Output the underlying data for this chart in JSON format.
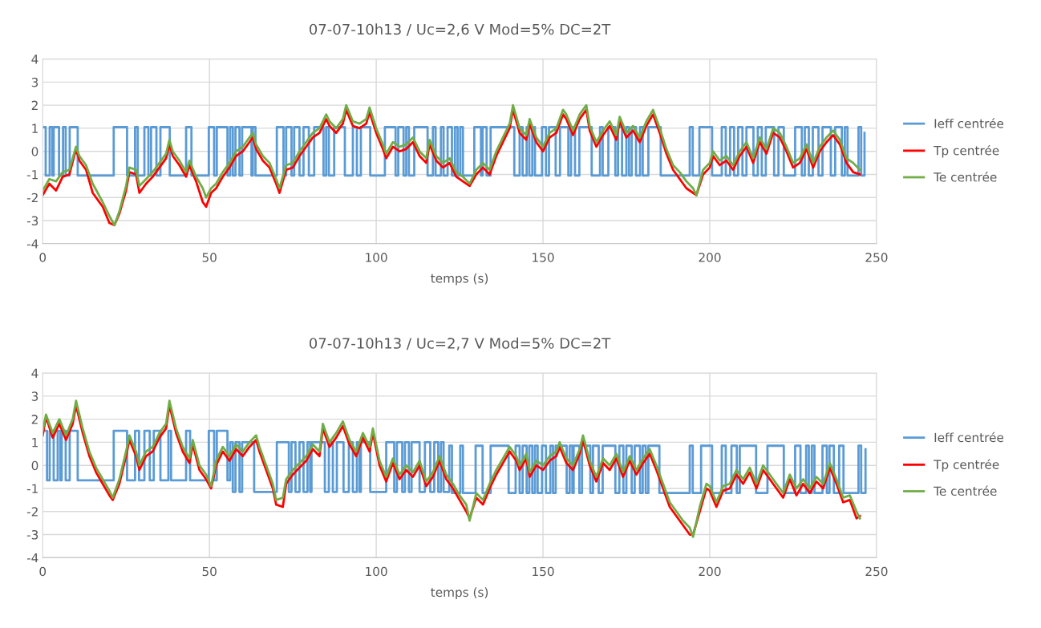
{
  "chart_data": [
    {
      "type": "line",
      "title": "07-07-10h13 / Uc=2,6 V Mod=5% DC=2T",
      "xlabel": "temps (s)",
      "xlim": [
        0,
        250
      ],
      "xticks": [
        0,
        50,
        100,
        150,
        200,
        250
      ],
      "ylim": [
        -4,
        4
      ],
      "yticks": [
        -4,
        -3,
        -2,
        -1,
        0,
        1,
        2,
        3,
        4
      ],
      "grid": true,
      "legend": "right",
      "series": [
        {
          "name": "Ieff centrée",
          "type": "step",
          "color": "#5b9bd5",
          "x": [
            0,
            0.9,
            2.1,
            2.9,
            3.3,
            4.9,
            6.1,
            6.9,
            8.1,
            10.5,
            21.3,
            25.3,
            27.7,
            28.5,
            30.5,
            31.7,
            32.5,
            34.1,
            35.3,
            38.1,
            43.0,
            44.6,
            49.8,
            51.4,
            52.2,
            55.4,
            56.2,
            57.0,
            57.8,
            59.0,
            59.8,
            62.6,
            63.0,
            63.8,
            70.2,
            72.2,
            73.0,
            74.6,
            75.4,
            77.0,
            78.2,
            79.8,
            81.4,
            84.2,
            85.0,
            85.8,
            87.4,
            90.6,
            93.0,
            94.2,
            95.4,
            98.2,
            102.6,
            105.8,
            106.6,
            108.2,
            109.0,
            109.8,
            111.4,
            115.4,
            117.0,
            117.8,
            119.4,
            120.2,
            121.4,
            122.7,
            123.6,
            124.4,
            125.2,
            126.0,
            129.4,
            131.4,
            131.9,
            133.1,
            134.3,
            141.4,
            143.0,
            143.9,
            145.1,
            145.9,
            146.8,
            147.6,
            149.7,
            150.9,
            151.8,
            153.8,
            155.1,
            157.6,
            158.4,
            159.6,
            160.9,
            164.6,
            167.1,
            167.9,
            169.6,
            171.7,
            172.5,
            173.7,
            175.0,
            175.8,
            176.6,
            177.9,
            179.1,
            179.9,
            181.6,
            185.3,
            194.0,
            194.9,
            196.9,
            200.7,
            203.6,
            204.8,
            206.1,
            207.3,
            208.5,
            209.8,
            211.0,
            213.1,
            214.4,
            215.6,
            216.8,
            219.3,
            220.6,
            222.2,
            225.6,
            227.6,
            228.5,
            229.7,
            230.9,
            232.6,
            233.8,
            236.3,
            237.6,
            239.6,
            240.5,
            241.3,
            244.6,
            245.4,
            246.4
          ],
          "values": [
            1.05,
            -1.05,
            1.05,
            -1.05,
            1.05,
            -1.05,
            1.05,
            -1.05,
            1.05,
            -1.05,
            1.05,
            -1.05,
            1.05,
            -1.05,
            1.05,
            -1.05,
            1.05,
            -1.05,
            1.05,
            -1.05,
            1.05,
            -1.05,
            1.05,
            -1.05,
            1.05,
            -1.05,
            1.05,
            -1.05,
            1.05,
            -1.05,
            1.05,
            -1.05,
            1.05,
            -1.05,
            1.05,
            -1.05,
            1.05,
            -1.05,
            1.05,
            -1.05,
            1.05,
            -1.05,
            1.05,
            -1.05,
            1.05,
            -1.05,
            1.05,
            -1.05,
            1.05,
            -1.05,
            1.05,
            -1.05,
            1.05,
            -1.05,
            1.05,
            -1.05,
            1.05,
            -1.05,
            1.05,
            -1.05,
            1.05,
            -1.05,
            1.05,
            -1.05,
            1.05,
            -1.05,
            1.05,
            -1.05,
            1.05,
            -1.05,
            1.05,
            -1.05,
            1.05,
            -1.05,
            1.05,
            -1.05,
            1.05,
            -1.05,
            1.05,
            -1.05,
            1.05,
            -1.05,
            1.05,
            -1.05,
            1.05,
            -1.05,
            1.05,
            -1.05,
            1.05,
            -1.05,
            1.05,
            -1.05,
            1.05,
            -1.05,
            1.05,
            -1.05,
            1.05,
            -1.05,
            1.05,
            -1.05,
            1.05,
            -1.05,
            1.05,
            -1.05,
            1.05,
            -1.05,
            1.05,
            -1.05,
            1.05,
            -1.05,
            1.05,
            -1.05,
            1.05,
            -1.05,
            1.05,
            -1.05,
            1.05,
            -1.05,
            1.05,
            -1.05,
            1.05,
            -1.05,
            1.05,
            -1.05,
            1.05,
            -1.05,
            1.05,
            -1.05,
            1.05,
            -1.05,
            1.05,
            -1.05,
            1.05,
            -1.05,
            1.05,
            -1.05,
            1.05,
            -1.05,
            0.8
          ]
        },
        {
          "name": "Tp centrée",
          "type": "line",
          "color": "#ff0000",
          "x": [
            0,
            2,
            4,
            6,
            8,
            10,
            11,
            13,
            15,
            18,
            20,
            21.5,
            23,
            25,
            26,
            28,
            29,
            31,
            33,
            35,
            37,
            38,
            39,
            41,
            43,
            44,
            46,
            48,
            49,
            50.5,
            52,
            54,
            56,
            58,
            60,
            62,
            63,
            64,
            66,
            68,
            70,
            71,
            73,
            75,
            77,
            79,
            81,
            83,
            85,
            86,
            88,
            90,
            91,
            93,
            95,
            97,
            98,
            100,
            102,
            103,
            105,
            107,
            109,
            111,
            113,
            115,
            116,
            118,
            120,
            122,
            124,
            126,
            128,
            130,
            132,
            134,
            136,
            138,
            140,
            141,
            143,
            145,
            146,
            148,
            150,
            152,
            154,
            156,
            157,
            159,
            161,
            163,
            164,
            166,
            168,
            170,
            172,
            173,
            175,
            177,
            179,
            181,
            183,
            185,
            187,
            189,
            191,
            193,
            195,
            196,
            198,
            200,
            201,
            203,
            205,
            207,
            209,
            211,
            213,
            215,
            217,
            219,
            221,
            223,
            225,
            227,
            229,
            231,
            233,
            235,
            237,
            239,
            241,
            243,
            245
          ],
          "values": [
            -1.9,
            -1.4,
            -1.7,
            -1.1,
            -1.0,
            0.1,
            -0.4,
            -0.8,
            -1.8,
            -2.4,
            -3.1,
            -3.2,
            -2.7,
            -1.7,
            -0.9,
            -1.0,
            -1.8,
            -1.4,
            -1.1,
            -0.7,
            -0.3,
            0.3,
            -0.2,
            -0.6,
            -1.1,
            -0.6,
            -1.3,
            -2.2,
            -2.4,
            -1.8,
            -1.6,
            -1.1,
            -0.7,
            -0.2,
            0.0,
            0.4,
            0.6,
            0.1,
            -0.4,
            -0.7,
            -1.4,
            -1.8,
            -0.8,
            -0.7,
            -0.2,
            0.2,
            0.6,
            0.8,
            1.4,
            1.1,
            0.8,
            1.2,
            1.8,
            1.1,
            1.0,
            1.2,
            1.7,
            0.8,
            0.1,
            -0.3,
            0.2,
            0.0,
            0.1,
            0.4,
            -0.2,
            -0.5,
            0.3,
            -0.4,
            -0.7,
            -0.5,
            -1.1,
            -1.3,
            -1.5,
            -1.0,
            -0.7,
            -1.0,
            -0.2,
            0.4,
            1.0,
            1.8,
            0.8,
            0.5,
            1.2,
            0.4,
            0.0,
            0.6,
            0.8,
            1.6,
            1.4,
            0.7,
            1.4,
            1.8,
            0.9,
            0.2,
            0.7,
            1.1,
            0.5,
            1.3,
            0.6,
            0.9,
            0.4,
            1.1,
            1.6,
            0.8,
            -0.1,
            -0.8,
            -1.2,
            -1.6,
            -1.8,
            -1.9,
            -1.0,
            -0.7,
            -0.2,
            -0.6,
            -0.4,
            -0.8,
            -0.2,
            0.2,
            -0.5,
            0.4,
            -0.1,
            0.8,
            0.6,
            0.0,
            -0.7,
            -0.5,
            0.1,
            -0.7,
            0.0,
            0.4,
            0.7,
            0.3,
            -0.5,
            -0.9,
            -1.0
          ]
        },
        {
          "name": "Te centrée",
          "type": "line",
          "color": "#70ad47",
          "x": [
            0,
            2,
            4,
            6,
            8,
            10,
            11,
            13,
            15,
            18,
            20,
            21.5,
            23,
            25,
            26,
            28,
            29,
            31,
            33,
            35,
            37,
            38,
            39,
            41,
            43,
            44,
            46,
            48,
            49,
            50.5,
            52,
            54,
            56,
            58,
            60,
            62,
            63,
            64,
            66,
            68,
            70,
            71,
            73,
            75,
            77,
            79,
            81,
            83,
            85,
            86,
            88,
            90,
            91,
            93,
            95,
            97,
            98,
            100,
            102,
            103,
            105,
            107,
            109,
            111,
            113,
            115,
            116,
            118,
            120,
            122,
            124,
            126,
            128,
            130,
            132,
            134,
            136,
            138,
            140,
            141,
            143,
            145,
            146,
            148,
            150,
            152,
            154,
            156,
            157,
            159,
            161,
            163,
            164,
            166,
            168,
            170,
            172,
            173,
            175,
            177,
            179,
            181,
            183,
            185,
            187,
            189,
            191,
            193,
            195,
            196,
            198,
            200,
            201,
            203,
            205,
            207,
            209,
            211,
            213,
            215,
            217,
            219,
            221,
            223,
            225,
            227,
            229,
            231,
            233,
            235,
            237,
            239,
            241,
            243,
            245
          ],
          "values": [
            -1.7,
            -1.2,
            -1.3,
            -0.9,
            -0.8,
            0.2,
            -0.2,
            -0.6,
            -1.4,
            -2.2,
            -2.8,
            -3.2,
            -2.6,
            -1.5,
            -0.7,
            -0.8,
            -1.5,
            -1.2,
            -0.9,
            -0.5,
            -0.1,
            0.5,
            0.0,
            -0.4,
            -0.9,
            -0.4,
            -1.1,
            -1.6,
            -2.0,
            -1.6,
            -1.4,
            -0.9,
            -0.5,
            0.0,
            0.2,
            0.6,
            0.8,
            0.3,
            -0.2,
            -0.5,
            -1.2,
            -1.6,
            -0.6,
            -0.5,
            0.0,
            0.4,
            0.8,
            1.0,
            1.6,
            1.3,
            1.0,
            1.4,
            2.0,
            1.3,
            1.2,
            1.4,
            1.9,
            1.0,
            0.3,
            -0.1,
            0.4,
            0.2,
            0.3,
            0.6,
            0.0,
            -0.3,
            0.5,
            -0.2,
            -0.5,
            -0.3,
            -0.9,
            -1.1,
            -1.4,
            -0.8,
            -0.5,
            -0.8,
            0.0,
            0.6,
            1.2,
            2.0,
            1.0,
            0.7,
            1.4,
            0.6,
            0.2,
            0.8,
            1.0,
            1.8,
            1.6,
            0.9,
            1.6,
            2.0,
            1.1,
            0.4,
            0.9,
            1.3,
            0.7,
            1.5,
            0.8,
            1.1,
            0.6,
            1.3,
            1.8,
            1.0,
            0.1,
            -0.6,
            -0.9,
            -1.3,
            -1.6,
            -1.9,
            -0.8,
            -0.5,
            0.0,
            -0.4,
            -0.2,
            -0.6,
            0.0,
            0.4,
            -0.3,
            0.6,
            0.1,
            1.0,
            0.8,
            0.2,
            -0.5,
            -0.3,
            0.3,
            -0.5,
            0.2,
            0.6,
            0.9,
            0.5,
            -0.3,
            -0.5,
            -0.8
          ]
        }
      ]
    },
    {
      "type": "line",
      "title": "07-07-10h13 / Uc=2,7 V Mod=5% DC=2T",
      "xlabel": "temps (s)",
      "xlim": [
        0,
        250
      ],
      "xticks": [
        0,
        50,
        100,
        150,
        200,
        250
      ],
      "ylim": [
        -4,
        4
      ],
      "yticks": [
        -4,
        -3,
        -2,
        -1,
        0,
        1,
        2,
        3,
        4
      ],
      "grid": true,
      "legend": "right",
      "series": [
        {
          "name": "Ieff centrée",
          "type": "step",
          "color": "#5b9bd5",
          "x": [
            0.1,
            1.3,
            2.1,
            3.3,
            4.5,
            5.3,
            5.7,
            6.9,
            8.1,
            10.5,
            21.3,
            25.3,
            27.7,
            28.9,
            30.5,
            32.1,
            33.3,
            35.3,
            37.7,
            38.5,
            43.0,
            44.2,
            49.8,
            51.4,
            52.2,
            55.4,
            56.2,
            57.0,
            57.8,
            59.0,
            59.8,
            63.4,
            70.2,
            73.8,
            74.6,
            75.8,
            77.0,
            78.2,
            79.4,
            80.2,
            80.6,
            84.6,
            85.8,
            87.0,
            88.2,
            90.2,
            91.8,
            93.0,
            94.2,
            95.0,
            95.4,
            98.2,
            103.0,
            105.4,
            106.2,
            107.8,
            108.6,
            109.8,
            110.6,
            113.0,
            114.6,
            116.2,
            117.4,
            118.6,
            119.4,
            120.2,
            121.9,
            122.7,
            125.2,
            126.0,
            129.8,
            131.9,
            134.3,
            139.7,
            141.8,
            143.0,
            143.9,
            145.1,
            145.9,
            146.8,
            147.6,
            148.4,
            149.7,
            150.9,
            152.2,
            153.0,
            153.8,
            157.1,
            158.0,
            158.8,
            159.2,
            160.9,
            161.7,
            164.2,
            165.0,
            166.7,
            167.9,
            171.7,
            172.9,
            174.1,
            175.0,
            176.6,
            177.5,
            179.1,
            179.9,
            180.8,
            181.6,
            184.9,
            194.0,
            194.9,
            197.4,
            200.7,
            203.6,
            204.8,
            206.5,
            208.1,
            209.0,
            213.9,
            217.3,
            222.2,
            225.6,
            227.2,
            228.9,
            229.7,
            230.6,
            231.4,
            233.8,
            235.1,
            235.9,
            237.2,
            238.8,
            240.1,
            244.6,
            245.4,
            246.7
          ],
          "values": [
            1.5,
            -0.65,
            1.5,
            -0.65,
            1.5,
            -0.65,
            1.5,
            -0.65,
            1.5,
            -0.65,
            1.5,
            -0.65,
            1.5,
            -0.65,
            1.5,
            -0.65,
            1.5,
            -0.65,
            1.5,
            -0.65,
            1.5,
            -0.65,
            1.5,
            -0.65,
            1.5,
            -0.65,
            1.0,
            -1.15,
            1.0,
            -1.15,
            1.0,
            -1.15,
            1.0,
            -1.15,
            1.0,
            -1.15,
            1.0,
            -1.15,
            1.0,
            -1.15,
            1.0,
            -1.15,
            1.0,
            -1.15,
            1.0,
            -1.15,
            1.0,
            -1.15,
            1.0,
            -1.15,
            1.0,
            -1.15,
            1.0,
            -1.15,
            1.0,
            -1.15,
            1.0,
            -1.15,
            1.0,
            -1.15,
            1.0,
            -1.15,
            1.0,
            -1.15,
            1.0,
            -1.15,
            0.85,
            -1.2,
            0.85,
            -1.2,
            0.85,
            -1.2,
            0.85,
            -1.2,
            0.85,
            -1.2,
            0.85,
            -1.2,
            0.85,
            -1.2,
            0.85,
            -1.2,
            0.85,
            -1.2,
            0.85,
            -1.2,
            0.85,
            -1.2,
            0.85,
            -1.2,
            0.85,
            -1.2,
            0.85,
            -1.2,
            0.85,
            -1.2,
            0.85,
            -1.2,
            0.85,
            -1.2,
            0.85,
            -1.2,
            0.85,
            -1.2,
            0.85,
            -1.2,
            0.85,
            -1.2,
            0.85,
            -1.2,
            0.85,
            -1.2,
            0.85,
            -1.2,
            0.85,
            -1.2,
            0.85,
            -1.2,
            0.85,
            -1.2,
            0.85,
            -1.2,
            0.85,
            -1.2,
            0.85,
            -1.2,
            0.85,
            -1.2,
            0.85,
            -1.2,
            0.85,
            -1.2,
            0.85,
            -1.2,
            0.7
          ]
        },
        {
          "name": "Tp centrée",
          "type": "line",
          "color": "#ff0000",
          "x": [
            0,
            1,
            3,
            5,
            7,
            9,
            10,
            12,
            14,
            16,
            18,
            20,
            21,
            23,
            25,
            26,
            28,
            29,
            31,
            33,
            35,
            37,
            38,
            40,
            42,
            44,
            45,
            47,
            49,
            50.5,
            52,
            54,
            56,
            58,
            60,
            62,
            64,
            65,
            67,
            69,
            70,
            72,
            73,
            75,
            77,
            79,
            81,
            83,
            84,
            86,
            88,
            90,
            92,
            94,
            96,
            98,
            99,
            101,
            103,
            105,
            107,
            109,
            111,
            113,
            115,
            117,
            119,
            121,
            123,
            125,
            127,
            128,
            130,
            132,
            134,
            136,
            138,
            140,
            142,
            143,
            145,
            146,
            148,
            150,
            152,
            154,
            155,
            157,
            159,
            161,
            162,
            164,
            166,
            168,
            170,
            172,
            174,
            176,
            178,
            180,
            182,
            184,
            186,
            188,
            190,
            192,
            194,
            195,
            197,
            199,
            200,
            202,
            204,
            206,
            208,
            210,
            212,
            214,
            216,
            218,
            220,
            222,
            224,
            226,
            228,
            230,
            232,
            234,
            236,
            238,
            240,
            242,
            244,
            245
          ],
          "values": [
            1.3,
            2.1,
            1.2,
            1.8,
            1.1,
            1.8,
            2.6,
            1.4,
            0.4,
            -0.3,
            -0.8,
            -1.3,
            -1.5,
            -0.8,
            0.4,
            1.1,
            0.4,
            -0.2,
            0.4,
            0.6,
            1.2,
            1.6,
            2.6,
            1.4,
            0.6,
            0.1,
            0.9,
            -0.2,
            -0.6,
            -1.0,
            0.0,
            0.6,
            0.2,
            0.7,
            0.4,
            0.8,
            1.1,
            0.6,
            -0.2,
            -1.0,
            -1.7,
            -1.8,
            -0.8,
            -0.4,
            -0.1,
            0.2,
            0.7,
            0.4,
            1.6,
            0.8,
            1.2,
            1.7,
            0.9,
            0.4,
            1.2,
            0.6,
            1.4,
            0.0,
            -0.7,
            0.1,
            -0.6,
            -0.2,
            -0.5,
            0.0,
            -0.9,
            -0.5,
            0.2,
            -0.6,
            -1.0,
            -1.5,
            -2.0,
            -2.3,
            -1.4,
            -1.7,
            -1.0,
            -0.4,
            0.1,
            0.6,
            0.2,
            -0.2,
            0.3,
            -0.5,
            0.0,
            -0.2,
            0.2,
            0.4,
            0.8,
            0.1,
            -0.2,
            0.5,
            1.1,
            0.0,
            -0.7,
            0.1,
            -0.2,
            0.3,
            -0.5,
            0.2,
            -0.4,
            0.1,
            0.5,
            -0.2,
            -1.0,
            -1.8,
            -2.2,
            -2.6,
            -3.0,
            -3.0,
            -2.0,
            -1.0,
            -1.1,
            -1.8,
            -1.1,
            -1.0,
            -0.4,
            -0.8,
            -0.3,
            -1.0,
            -0.2,
            -0.6,
            -1.0,
            -1.4,
            -0.6,
            -1.3,
            -0.8,
            -1.2,
            -0.7,
            -1.0,
            -0.1,
            -0.8,
            -1.6,
            -1.5,
            -2.3,
            -2.2
          ]
        },
        {
          "name": "Te centrée",
          "type": "line",
          "color": "#70ad47",
          "x": [
            0,
            1,
            3,
            5,
            7,
            9,
            10,
            12,
            14,
            16,
            18,
            20,
            21,
            23,
            25,
            26,
            28,
            29,
            31,
            33,
            35,
            37,
            38,
            40,
            42,
            44,
            45,
            47,
            49,
            50.5,
            52,
            54,
            56,
            58,
            60,
            62,
            64,
            65,
            67,
            69,
            70,
            72,
            73,
            75,
            77,
            79,
            81,
            83,
            84,
            86,
            88,
            90,
            92,
            94,
            96,
            98,
            99,
            101,
            103,
            105,
            107,
            109,
            111,
            113,
            115,
            117,
            119,
            121,
            123,
            125,
            127,
            128,
            130,
            132,
            134,
            136,
            138,
            140,
            142,
            143,
            145,
            146,
            148,
            150,
            152,
            154,
            155,
            157,
            159,
            161,
            162,
            164,
            166,
            168,
            170,
            172,
            174,
            176,
            178,
            180,
            182,
            184,
            186,
            188,
            190,
            192,
            194,
            195,
            197,
            199,
            200,
            202,
            204,
            206,
            208,
            210,
            212,
            214,
            216,
            218,
            220,
            222,
            224,
            226,
            228,
            230,
            232,
            234,
            236,
            238,
            240,
            242,
            244,
            245
          ],
          "values": [
            1.5,
            2.2,
            1.4,
            2.0,
            1.3,
            2.0,
            2.8,
            1.6,
            0.6,
            -0.1,
            -0.6,
            -1.1,
            -1.4,
            -0.6,
            0.6,
            1.3,
            0.6,
            0.0,
            0.6,
            0.8,
            1.4,
            1.8,
            2.8,
            1.6,
            0.8,
            0.3,
            1.1,
            0.0,
            -0.4,
            -0.9,
            0.2,
            0.8,
            0.4,
            0.9,
            0.6,
            1.0,
            1.3,
            0.8,
            0.0,
            -0.8,
            -1.5,
            -1.4,
            -0.6,
            -0.2,
            0.1,
            0.4,
            0.9,
            0.6,
            1.8,
            1.0,
            1.4,
            1.9,
            1.1,
            0.6,
            1.4,
            0.8,
            1.6,
            0.2,
            -0.5,
            0.3,
            -0.4,
            0.0,
            -0.3,
            0.2,
            -0.7,
            -0.3,
            0.4,
            -0.4,
            -0.8,
            -1.3,
            -1.7,
            -2.4,
            -1.2,
            -1.5,
            -0.8,
            -0.2,
            0.3,
            0.8,
            0.4,
            0.0,
            0.5,
            -0.3,
            0.2,
            0.0,
            0.4,
            0.6,
            1.0,
            0.3,
            0.0,
            0.7,
            1.3,
            0.2,
            -0.5,
            0.3,
            0.0,
            0.5,
            -0.3,
            0.4,
            -0.2,
            0.3,
            0.7,
            0.0,
            -0.8,
            -1.6,
            -2.0,
            -2.4,
            -2.7,
            -3.1,
            -1.8,
            -0.8,
            -0.9,
            -1.6,
            -0.9,
            -0.8,
            -0.2,
            -0.6,
            -0.1,
            -0.8,
            0.0,
            -0.4,
            -0.8,
            -1.2,
            -0.4,
            -1.0,
            -0.6,
            -1.0,
            -0.5,
            -0.8,
            0.1,
            -0.6,
            -1.4,
            -1.3,
            -2.0,
            -2.3
          ]
        }
      ]
    }
  ]
}
